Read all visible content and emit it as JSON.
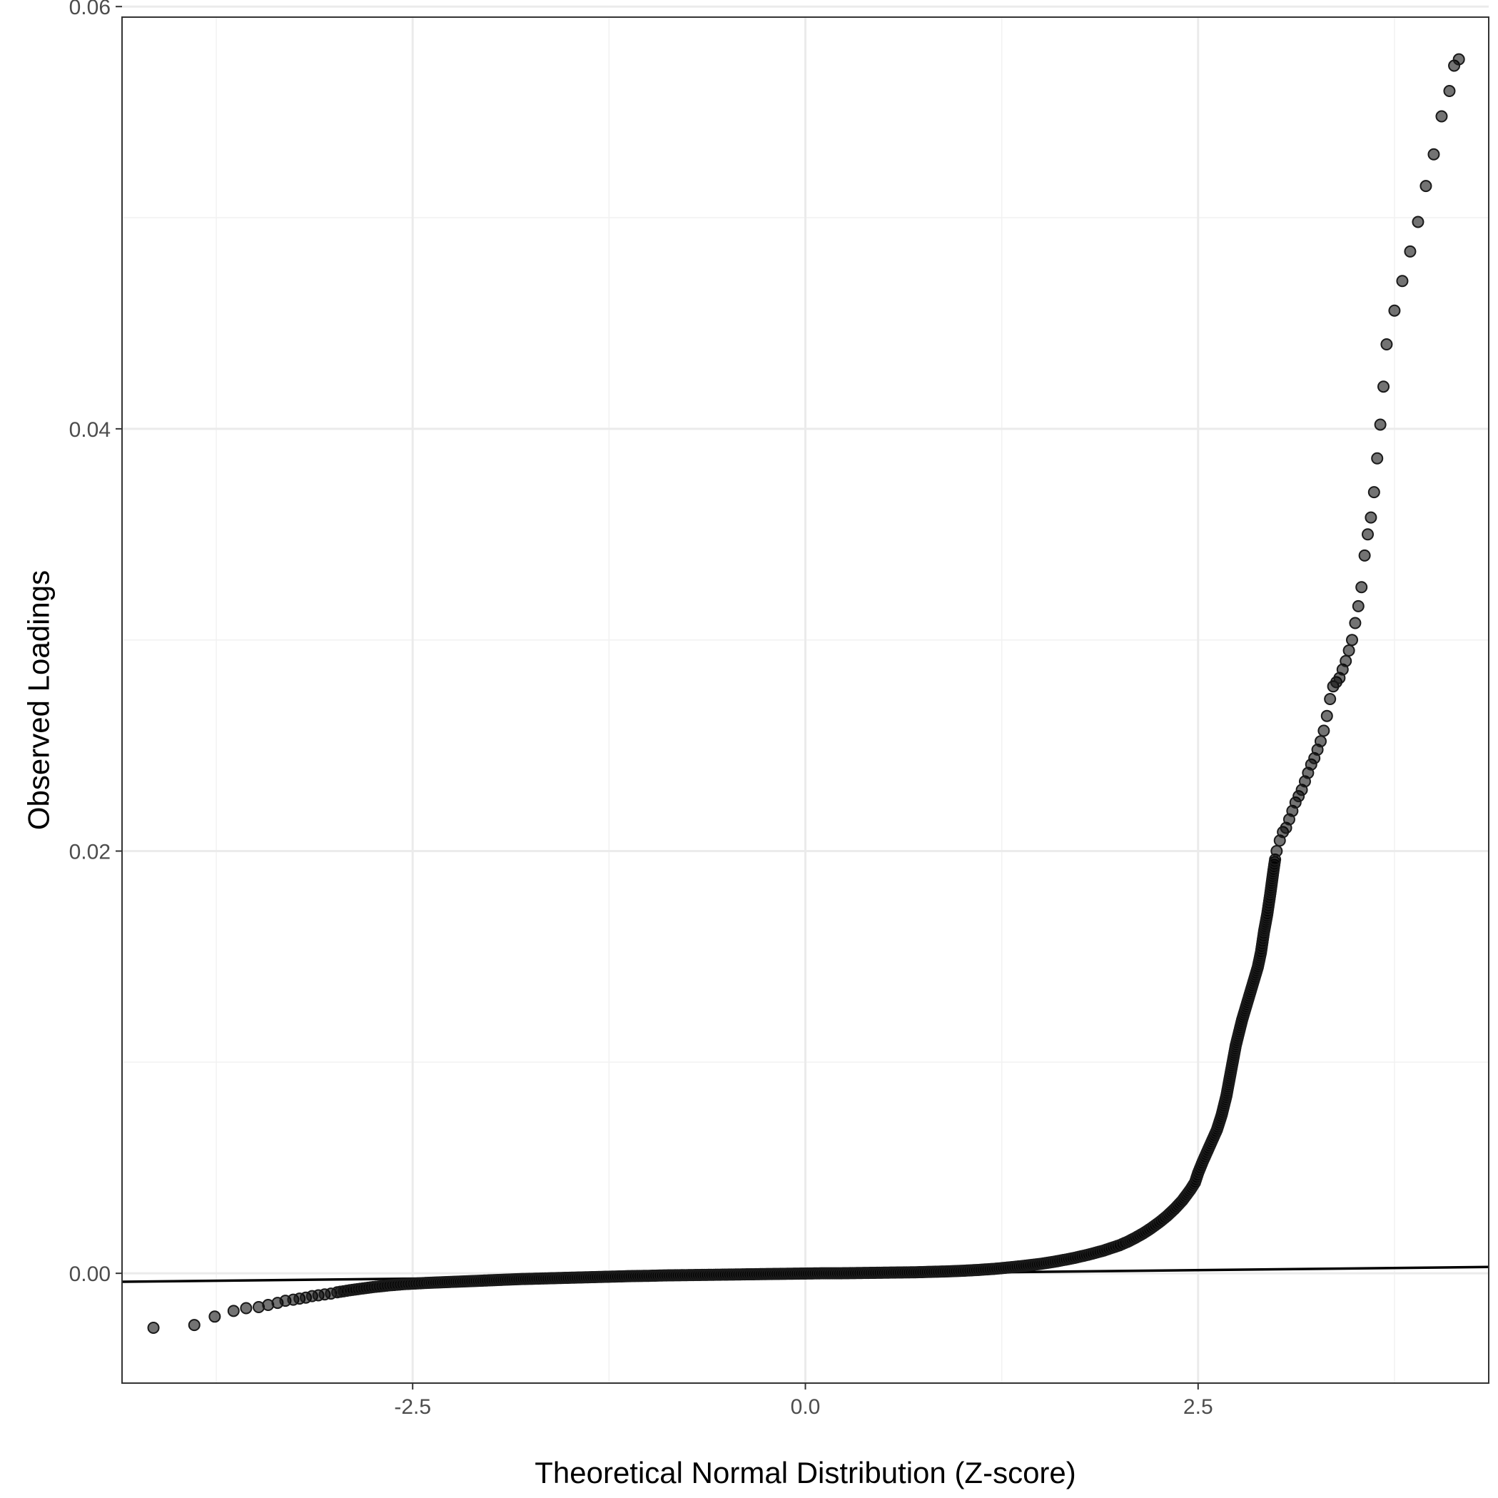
{
  "chart_data": {
    "type": "scatter",
    "title": "",
    "xlabel": "Theoretical Normal Distribution (Z-score)",
    "ylabel": "Observed Loadings",
    "xlim": [
      -4.35,
      4.35
    ],
    "ylim": [
      -0.0052,
      0.0595
    ],
    "x_ticks": [
      -2.5,
      0.0,
      2.5
    ],
    "x_tick_labels": [
      "-2.5",
      "0.0",
      "2.5"
    ],
    "y_ticks": [
      0.0,
      0.02,
      0.04,
      0.06
    ],
    "y_tick_labels": [
      "0.00",
      "0.02",
      "0.04",
      "0.06"
    ],
    "grid": true,
    "legend": "none",
    "point_color": "#000000",
    "point_alpha": 0.55,
    "reference_line": {
      "x": [
        -4.35,
        4.35
      ],
      "y": [
        -0.0004,
        0.0003
      ],
      "color": "#000000"
    },
    "points": [
      [
        -4.15,
        -0.00258
      ],
      [
        -3.89,
        -0.00245
      ],
      [
        -3.76,
        -0.00205
      ],
      [
        -3.64,
        -0.00178
      ],
      [
        -3.56,
        -0.00165
      ],
      [
        -3.48,
        -0.0016
      ],
      [
        -3.42,
        -0.0015
      ],
      [
        -3.36,
        -0.0014
      ],
      [
        -3.31,
        -0.0013
      ],
      [
        -3.26,
        -0.00125
      ],
      [
        -3.22,
        -0.0012
      ],
      [
        -3.18,
        -0.00115
      ],
      [
        -3.14,
        -0.00108
      ],
      [
        -3.1,
        -0.00104
      ],
      [
        -3.06,
        -0.001
      ],
      [
        -3.02,
        -0.00096
      ],
      [
        -2.98,
        -0.0009
      ],
      [
        -2.94,
        -0.00085
      ],
      [
        -2.9,
        -0.0008
      ],
      [
        -2.85,
        -0.00075
      ],
      [
        -2.8,
        -0.0007
      ],
      [
        -2.75,
        -0.00065
      ],
      [
        -2.7,
        -0.00061
      ],
      [
        -2.65,
        -0.00057
      ],
      [
        -2.6,
        -0.00054
      ],
      [
        -2.55,
        -0.00051
      ],
      [
        -2.5,
        -0.00049
      ],
      [
        -2.45,
        -0.00047
      ],
      [
        -2.4,
        -0.00045
      ],
      [
        -2.3,
        -0.00042
      ],
      [
        -2.2,
        -0.00039
      ],
      [
        -2.1,
        -0.00036
      ],
      [
        -2.0,
        -0.00033
      ],
      [
        -1.9,
        -0.0003
      ],
      [
        -1.8,
        -0.00027
      ],
      [
        -1.7,
        -0.00025
      ],
      [
        -1.6,
        -0.00023
      ],
      [
        -1.5,
        -0.00021
      ],
      [
        -1.4,
        -0.00019
      ],
      [
        -1.3,
        -0.00017
      ],
      [
        -1.2,
        -0.00015
      ],
      [
        -1.1,
        -0.00013
      ],
      [
        -1.0,
        -0.00012
      ],
      [
        -0.9,
        -0.0001
      ],
      [
        -0.8,
        -9e-05
      ],
      [
        -0.7,
        -8e-05
      ],
      [
        -0.6,
        -7e-05
      ],
      [
        -0.5,
        -6e-05
      ],
      [
        -0.4,
        -5e-05
      ],
      [
        -0.3,
        -4e-05
      ],
      [
        -0.2,
        -3e-05
      ],
      [
        -0.1,
        -2e-05
      ],
      [
        0.0,
        -1e-05
      ],
      [
        0.1,
        0.0
      ],
      [
        0.2,
        0.0
      ],
      [
        0.3,
        1e-05
      ],
      [
        0.4,
        2e-05
      ],
      [
        0.5,
        3e-05
      ],
      [
        0.6,
        4e-05
      ],
      [
        0.7,
        5e-05
      ],
      [
        0.8,
        7e-05
      ],
      [
        0.9,
        9e-05
      ],
      [
        1.0,
        0.00012
      ],
      [
        1.1,
        0.00016
      ],
      [
        1.2,
        0.00021
      ],
      [
        1.3,
        0.00028
      ],
      [
        1.4,
        0.00036
      ],
      [
        1.5,
        0.00045
      ],
      [
        1.6,
        0.00057
      ],
      [
        1.7,
        0.00071
      ],
      [
        1.8,
        0.00088
      ],
      [
        1.9,
        0.00108
      ],
      [
        2.0,
        0.00133
      ],
      [
        2.05,
        0.00149
      ],
      [
        2.1,
        0.00168
      ],
      [
        2.15,
        0.00189
      ],
      [
        2.2,
        0.00213
      ],
      [
        2.25,
        0.0024
      ],
      [
        2.3,
        0.0027
      ],
      [
        2.35,
        0.00305
      ],
      [
        2.4,
        0.00345
      ],
      [
        2.45,
        0.00395
      ],
      [
        2.48,
        0.0043
      ],
      [
        2.5,
        0.00475
      ],
      [
        2.53,
        0.0053
      ],
      [
        2.56,
        0.0058
      ],
      [
        2.59,
        0.0063
      ],
      [
        2.62,
        0.0068
      ],
      [
        2.65,
        0.0075
      ],
      [
        2.68,
        0.0084
      ],
      [
        2.7,
        0.0092
      ],
      [
        2.72,
        0.01
      ],
      [
        2.74,
        0.0108
      ],
      [
        2.76,
        0.0114
      ],
      [
        2.78,
        0.012
      ],
      [
        2.8,
        0.0125
      ],
      [
        2.82,
        0.013
      ],
      [
        2.84,
        0.0135
      ],
      [
        2.86,
        0.014
      ],
      [
        2.88,
        0.0145
      ],
      [
        2.9,
        0.0152
      ],
      [
        2.91,
        0.0157
      ],
      [
        2.92,
        0.0162
      ],
      [
        2.93,
        0.0166
      ],
      [
        2.94,
        0.017
      ],
      [
        2.95,
        0.0175
      ],
      [
        2.96,
        0.018
      ],
      [
        2.97,
        0.01855
      ],
      [
        2.98,
        0.0191
      ],
      [
        2.99,
        0.0196
      ],
      [
        3.0,
        0.02
      ],
      [
        3.02,
        0.0205
      ],
      [
        3.04,
        0.0209
      ],
      [
        3.06,
        0.0211
      ],
      [
        3.08,
        0.0215
      ],
      [
        3.1,
        0.0219
      ],
      [
        3.12,
        0.0223
      ],
      [
        3.14,
        0.0226
      ],
      [
        3.16,
        0.0229
      ],
      [
        3.18,
        0.0233
      ],
      [
        3.2,
        0.0237
      ],
      [
        3.22,
        0.0241
      ],
      [
        3.24,
        0.0244
      ],
      [
        3.26,
        0.0248
      ],
      [
        3.28,
        0.0252
      ],
      [
        3.3,
        0.0257
      ],
      [
        3.32,
        0.0264
      ],
      [
        3.34,
        0.0272
      ],
      [
        3.36,
        0.0278
      ],
      [
        3.38,
        0.028
      ],
      [
        3.4,
        0.0282
      ],
      [
        3.42,
        0.0286
      ],
      [
        3.44,
        0.029
      ],
      [
        3.46,
        0.0295
      ],
      [
        3.48,
        0.03
      ],
      [
        3.5,
        0.0308
      ],
      [
        3.52,
        0.0316
      ],
      [
        3.54,
        0.0325
      ],
      [
        3.56,
        0.034
      ],
      [
        3.58,
        0.035
      ],
      [
        3.6,
        0.0358
      ],
      [
        3.62,
        0.037
      ],
      [
        3.64,
        0.0386
      ],
      [
        3.66,
        0.0402
      ],
      [
        3.68,
        0.042
      ],
      [
        3.7,
        0.044
      ],
      [
        3.75,
        0.0456
      ],
      [
        3.8,
        0.047
      ],
      [
        3.85,
        0.0484
      ],
      [
        3.9,
        0.0498
      ],
      [
        3.95,
        0.0515
      ],
      [
        4.0,
        0.053
      ],
      [
        4.05,
        0.0548
      ],
      [
        4.1,
        0.056
      ],
      [
        4.13,
        0.0572
      ],
      [
        4.16,
        0.0575
      ]
    ]
  }
}
